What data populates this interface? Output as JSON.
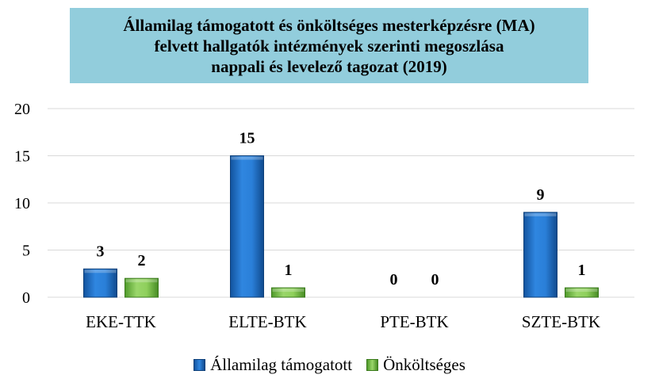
{
  "chart_data": {
    "type": "bar",
    "title_lines": [
      "Államilag támogatott és önköltséges mesterképzésre (MA)",
      "felvett hallgatók intézmények szerinti megoszlása",
      "nappali és levelező tagozat (2019)"
    ],
    "categories": [
      "EKE-TTK",
      "ELTE-BTK",
      "PTE-BTK",
      "SZTE-BTK"
    ],
    "series": [
      {
        "name": "Államilag támogatott",
        "values": [
          3,
          15,
          0,
          9
        ],
        "color": "#1f6fc5"
      },
      {
        "name": "Önköltséges",
        "values": [
          2,
          1,
          0,
          1
        ],
        "color": "#7cc242"
      }
    ],
    "ylim": [
      0,
      20
    ],
    "yticks": [
      0,
      5,
      10,
      15,
      20
    ],
    "grid": true,
    "legend_position": "bottom",
    "title_background": "#92cddc"
  }
}
